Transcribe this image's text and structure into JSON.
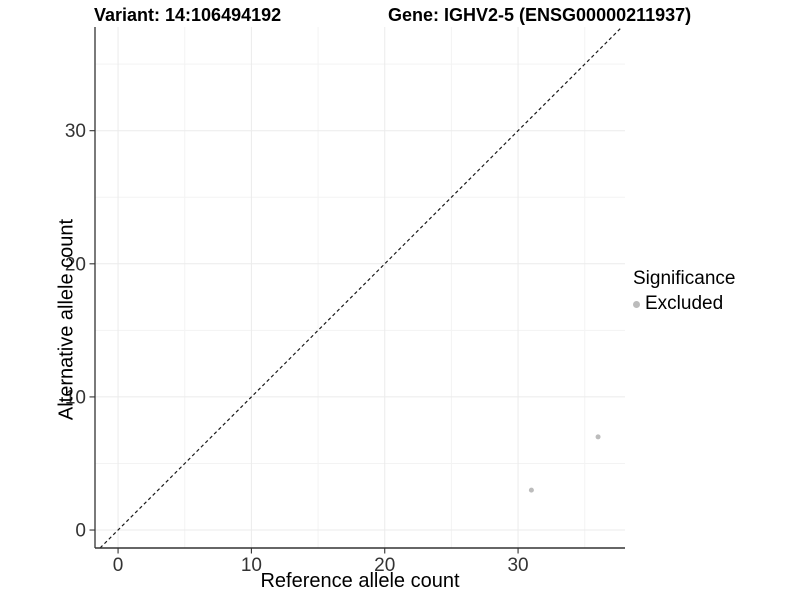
{
  "chart_data": {
    "type": "scatter",
    "title_left": "Variant: 14:106494192",
    "title_right": "Gene: IGHV2-5 (ENSG00000211937)",
    "xlabel": "Reference allele count",
    "ylabel": "Alternative allele count",
    "xlim": [
      -1.73,
      38.02
    ],
    "ylim": [
      -1.35,
      37.79
    ],
    "x_major_ticks": [
      0,
      10,
      20,
      30
    ],
    "y_major_ticks": [
      0,
      10,
      20,
      30
    ],
    "x_minor_ticks": [
      5,
      15,
      25,
      35
    ],
    "y_minor_ticks": [
      5,
      15,
      25,
      35
    ],
    "grid": true,
    "reference_line": {
      "equation": "y = x",
      "style": "dashed",
      "color": "#1A1A1A"
    },
    "series": [
      {
        "name": "Excluded",
        "color": "#BCBCBC",
        "point_radius": 2.5,
        "points": [
          {
            "x": 31,
            "y": 3
          },
          {
            "x": 36,
            "y": 7
          }
        ]
      }
    ],
    "legend": {
      "title": "Significance",
      "position": "right",
      "items": [
        {
          "label": "Excluded",
          "color": "#BCBCBC"
        }
      ]
    },
    "colors": {
      "background": "#FFFFFF",
      "grid_major": "#EBEBEB",
      "grid_minor": "#F3F3F3",
      "axis_line": "#333333",
      "tick_mark": "#333333",
      "tick_label": "#333333",
      "title_text": "#000000"
    }
  }
}
